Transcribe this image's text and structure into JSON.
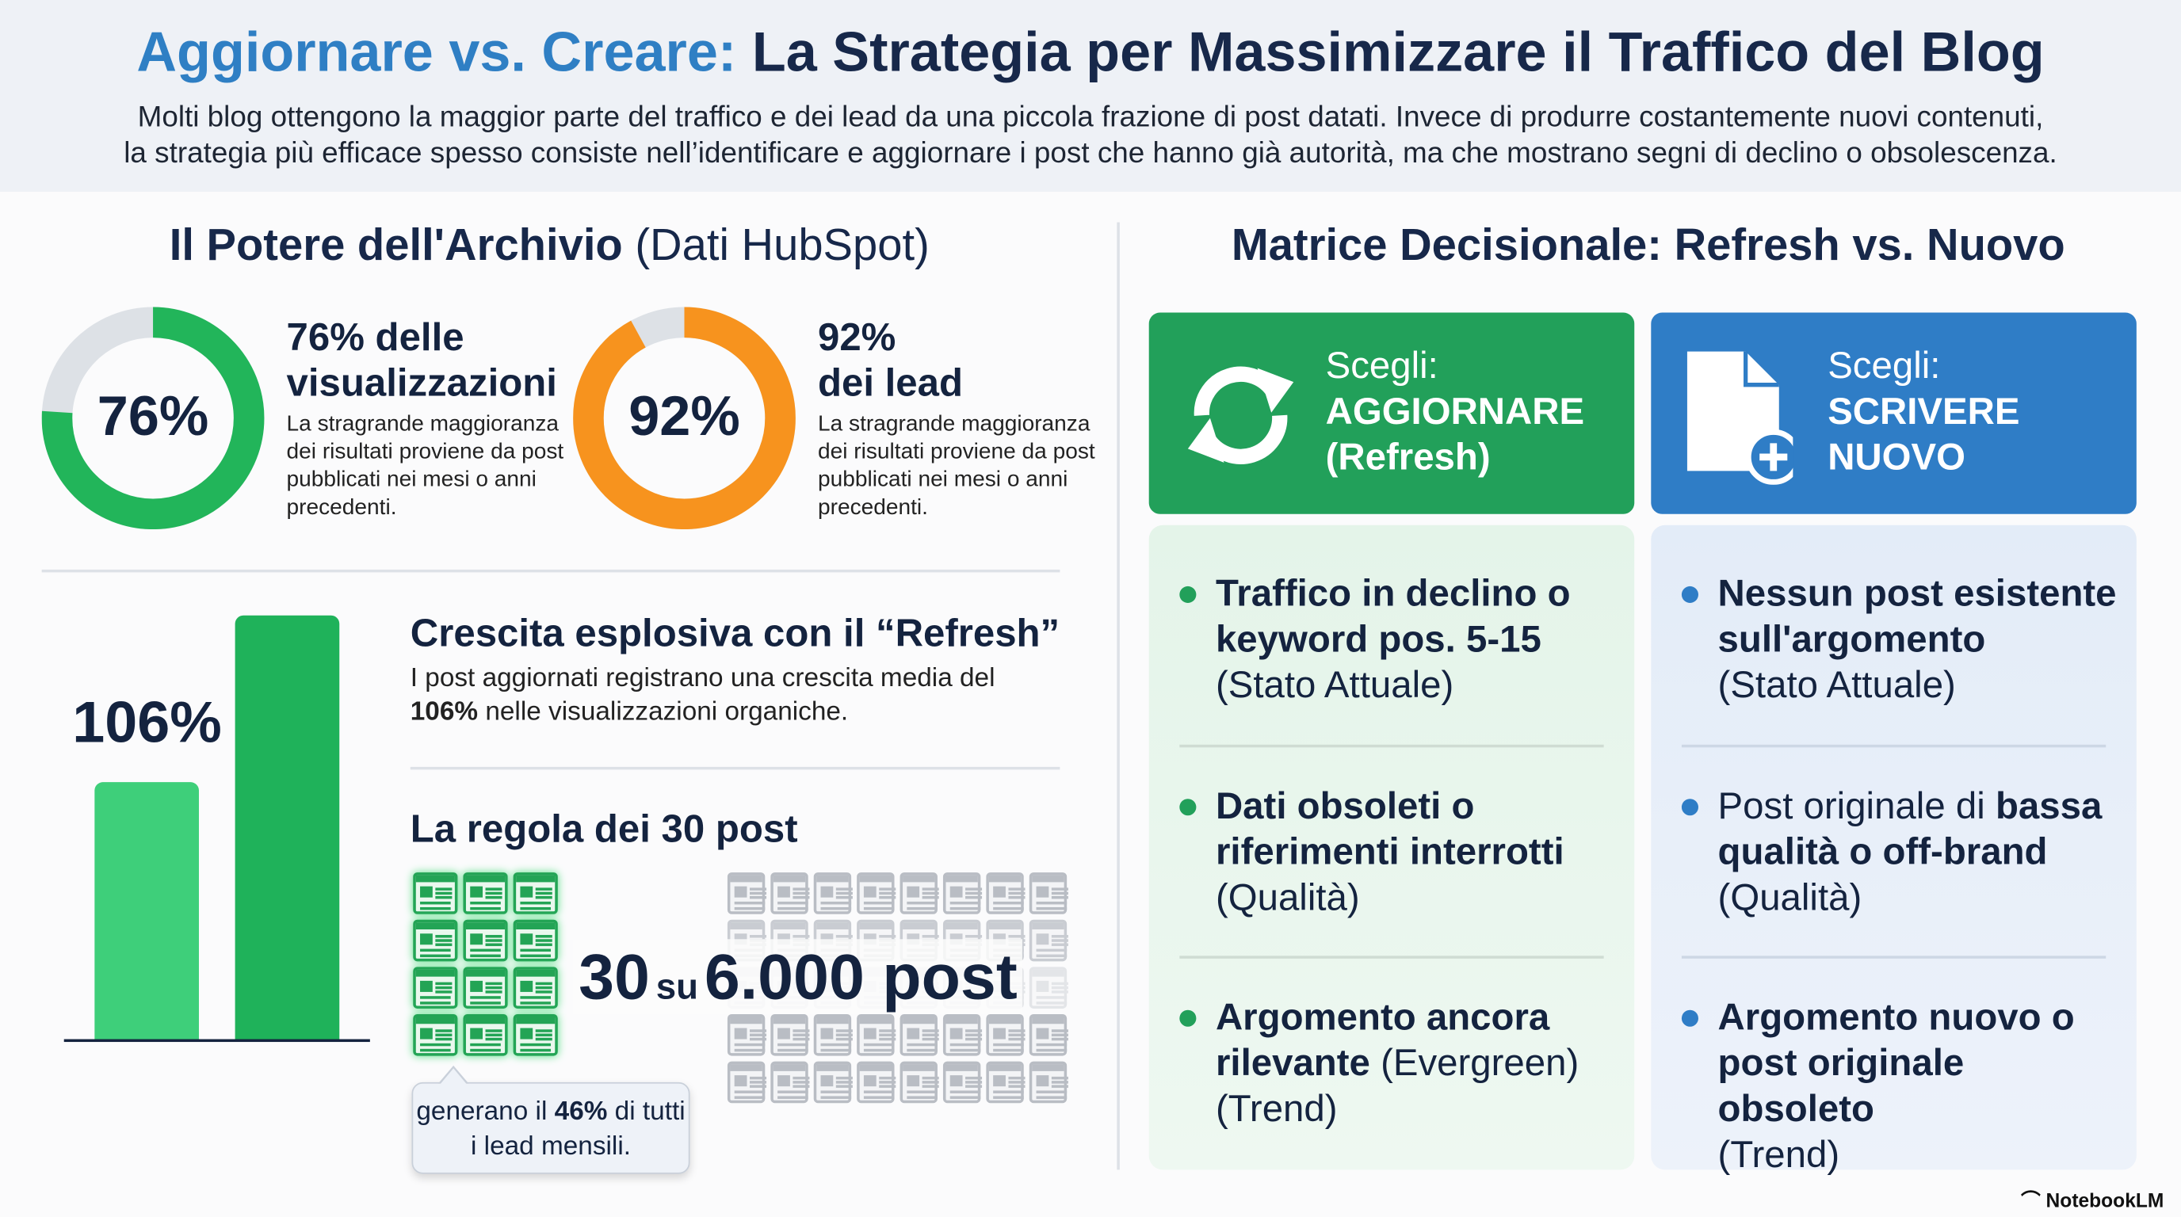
{
  "header": {
    "title_accent": "Aggiornare vs. Creare:",
    "title_rest": "La Strategia per Massimizzare il Traffico del Blog",
    "subtitle_line1": "Molti blog ottengono la maggior parte del traffico e dei lead da una piccola frazione di post datati. Invece di produrre costantemente nuovi contenuti,",
    "subtitle_line2": "la strategia più efficace spesso consiste nell’identificare e aggiornare i post che hanno già autorità, ma che mostrano segni di declino o obsolescenza."
  },
  "left": {
    "heading_bold": "Il Potere dell'Archivio",
    "heading_light": "(Dati HubSpot)",
    "stats": [
      {
        "value": 76,
        "label": "76%",
        "title_l1": "76% delle",
        "title_l2": "visualizzazioni",
        "desc": "La stragrande maggioranza dei risultati proviene da post pubblicati nei mesi o anni precedenti.",
        "color": "#22b55a"
      },
      {
        "value": 92,
        "label": "92%",
        "title_l1": "92%",
        "title_l2": "dei lead",
        "desc": "La stragrande maggioranza dei risultati proviene da post pubblicati nei mesi o anni precedenti.",
        "color": "#f7931e"
      }
    ],
    "growth": {
      "label": "106%",
      "title": "Crescita esplosiva con il “Refresh”",
      "desc_pre": "I post aggiornati registrano una crescita media del",
      "desc_bold": "106%",
      "desc_post": "nelle visualizzazioni organiche."
    },
    "rule": {
      "title": "La regola dei 30 post",
      "count": "30",
      "of": "su",
      "total": "6.000 post",
      "bubble_pre": "generano il",
      "bubble_bold": "46%",
      "bubble_post": "di tutti i lead mensili."
    }
  },
  "right": {
    "heading": "Matrice Decisionale: Refresh vs. Nuovo",
    "refresh": {
      "color": "#22a05a",
      "choose": "Scegli:",
      "action_l1": "AGGIORNARE",
      "action_l2": "(Refresh)",
      "icon": "refresh-icon",
      "items": [
        {
          "bold": "Traffico in declino o keyword pos. 5-15",
          "normal": "(Stato Attuale)"
        },
        {
          "bold": "Dati obsoleti o riferimenti interrotti",
          "normal": "(Qualità)"
        },
        {
          "bold": "Argomento ancora rilevante",
          "normal": "(Evergreen) (Trend)"
        }
      ]
    },
    "new": {
      "color": "#2f7dc6",
      "choose": "Scegli:",
      "action_l1": "SCRIVERE",
      "action_l2": "NUOVO",
      "icon": "new-document-icon",
      "items": [
        {
          "pre": "",
          "bold": "Nessun post esistente sull'argomento",
          "normal": "(Stato Attuale)"
        },
        {
          "pre": "Post originale di",
          "bold": "bassa qualità o off-brand",
          "normal": "(Qualità)"
        },
        {
          "pre": "",
          "bold": "Argomento nuovo o post originale obsoleto",
          "normal": "(Trend)"
        }
      ]
    }
  },
  "footer": {
    "brand": "NotebookLM"
  }
}
